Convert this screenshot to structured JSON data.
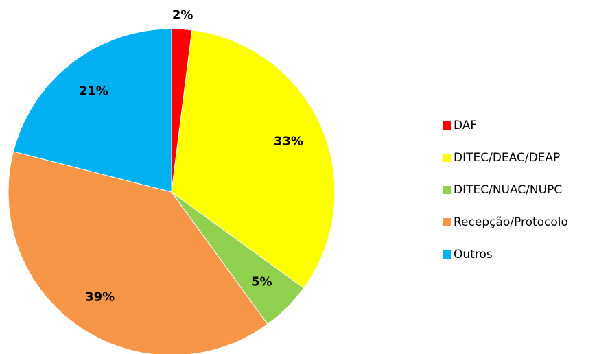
{
  "chart_data": {
    "type": "pie",
    "categories": [
      "DAF",
      "DITEC/DEAC/DEAP",
      "DITEC/NUAC/NUPC",
      "Recepção/Protocolo",
      "Outros"
    ],
    "values": [
      2,
      33,
      5,
      39,
      21
    ],
    "value_labels": [
      "2%",
      "33%",
      "5%",
      "39%",
      "21%"
    ],
    "colors": [
      "#ff0000",
      "#ffff00",
      "#92d050",
      "#f79646",
      "#00b0f0"
    ],
    "legend": "right"
  }
}
